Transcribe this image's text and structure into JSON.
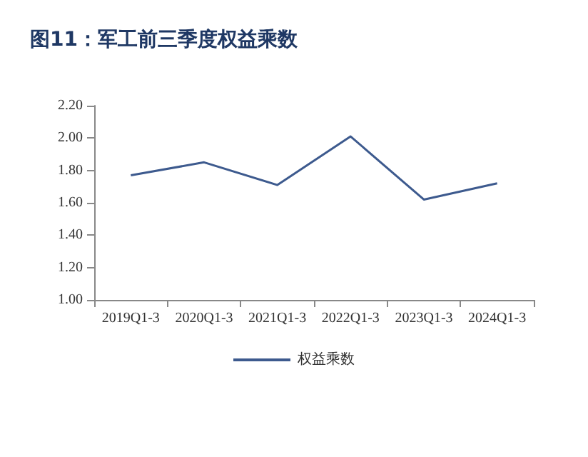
{
  "chart_data": {
    "type": "line",
    "title": "图11：军工前三季度权益乘数",
    "categories": [
      "2019Q1-3",
      "2020Q1-3",
      "2021Q1-3",
      "2022Q1-3",
      "2023Q1-3",
      "2024Q1-3"
    ],
    "series": [
      {
        "name": "权益乘数",
        "color": "#3d5a8e",
        "values": [
          1.77,
          1.85,
          1.71,
          2.01,
          1.62,
          1.72
        ]
      }
    ],
    "ylim": [
      1.0,
      2.2
    ],
    "yticks": [
      {
        "value": 1.0,
        "label": "1.00"
      },
      {
        "value": 1.2,
        "label": "1.20"
      },
      {
        "value": 1.4,
        "label": "1.40"
      },
      {
        "value": 1.6,
        "label": "1.60"
      },
      {
        "value": 1.8,
        "label": "1.80"
      },
      {
        "value": 2.0,
        "label": "2.00"
      },
      {
        "value": 2.2,
        "label": "2.20"
      }
    ],
    "grid": false,
    "legend": "bottom",
    "marker": "none",
    "line_style": "solid"
  }
}
